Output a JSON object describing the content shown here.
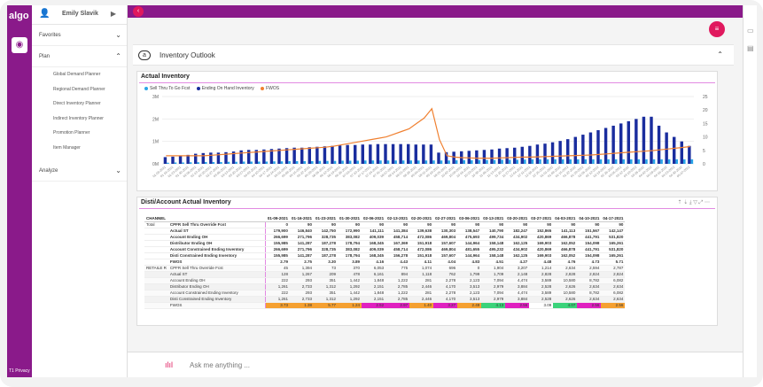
{
  "leftbar": {
    "logo": "algo",
    "privacy": "T1  Privacy"
  },
  "sidebar": {
    "user": "Emily Slavik",
    "sections": {
      "favorites": "Favorites",
      "plan": "Plan",
      "analyze": "Analyze"
    },
    "plan_items": [
      "Global Demand Planner",
      "Regional Demand Planner",
      "Direct Inventory Planner",
      "Indirect Inventory Planner",
      "Promotion Planner",
      "Item Manager"
    ]
  },
  "header": {
    "title": "Inventory Outlook"
  },
  "chart_panel": {
    "title": "Actual Inventory",
    "legend": [
      "Sell Thru To Go Fcst",
      "Ending On Hand Inventory",
      "FWOS"
    ],
    "colors": {
      "sell_thru": "#2aa6e8",
      "ending": "#1a2d9e",
      "fwos": "#f08030"
    }
  },
  "chart_data": {
    "type": "bar",
    "ylim": [
      0,
      3
    ],
    "y_ticks_left": [
      "3M",
      "2M",
      "1M",
      "0M"
    ],
    "y_ticks_right": [
      "25",
      "20",
      "15",
      "10",
      "5",
      "0"
    ],
    "series": [
      {
        "name": "Ending On Hand Inventory",
        "values": [
          0.3,
          0.32,
          0.35,
          0.4,
          0.45,
          0.48,
          0.5,
          0.5,
          0.52,
          0.55,
          0.6,
          0.62,
          0.62,
          0.64,
          0.66,
          0.68,
          0.7,
          0.72,
          0.72,
          0.74,
          0.76,
          0.78,
          0.8,
          0.82,
          0.84,
          0.84,
          0.86,
          0.86,
          0.88,
          0.88,
          0.88,
          0.88,
          0.88,
          0.86,
          0.86,
          0.86,
          0.5,
          0.52,
          0.54,
          0.56,
          0.58,
          0.6,
          0.62,
          0.64,
          0.68,
          0.7,
          0.72,
          0.76,
          0.8,
          0.86,
          0.9,
          0.96,
          1.02,
          1.1,
          1.2,
          1.3,
          1.4,
          1.5,
          1.6,
          1.7,
          1.8,
          1.9,
          2.0,
          2.1,
          2.1,
          1.7,
          1.4,
          1.2,
          1.0,
          0.8
        ]
      },
      {
        "name": "Sell Thru To Go Fcst",
        "values": [
          0.05,
          0.06,
          0.06,
          0.07,
          0.07,
          0.08,
          0.08,
          0.08,
          0.09,
          0.09,
          0.1,
          0.1,
          0.1,
          0.1,
          0.11,
          0.11,
          0.12,
          0.12,
          0.12,
          0.12,
          0.13,
          0.13,
          0.13,
          0.14,
          0.14,
          0.14,
          0.15,
          0.15,
          0.15,
          0.15,
          0.15,
          0.15,
          0.15,
          0.15,
          0.15,
          0.15,
          0.15,
          0.15,
          0.16,
          0.16,
          0.16,
          0.17,
          0.17,
          0.17,
          0.18,
          0.18,
          0.18,
          0.19,
          0.2,
          0.2,
          0.2,
          0.2,
          0.2,
          0.2,
          0.2,
          0.2,
          0.2,
          0.2,
          0.2,
          0.2,
          0.2,
          0.2,
          0.2,
          0.2,
          0.2,
          0.2,
          0.2,
          0.2,
          0.2,
          0.2
        ]
      },
      {
        "name": "FWOS",
        "values": [
          3,
          3,
          3,
          3,
          3,
          3,
          3.2,
          3.4,
          3.6,
          3.8,
          4,
          4.2,
          4.4,
          4.6,
          4.8,
          5,
          5.2,
          5.4,
          5.6,
          5.8,
          6,
          6.2,
          6.5,
          7,
          7.5,
          8,
          8.5,
          9,
          9.5,
          10,
          11,
          12,
          13,
          15,
          17,
          20.5,
          9,
          3,
          2.5,
          2.3,
          2.2,
          2.1,
          2.1,
          2.1,
          2.2,
          2.3,
          2.4,
          2.5,
          2.5,
          2.6,
          2.7,
          2.8,
          2.9,
          3,
          3.1,
          3.2,
          3.3,
          3.5,
          3.7,
          3.9,
          4.1,
          4.3,
          4.5,
          4.7,
          4.9,
          5.2,
          5.5,
          5.8,
          6.1,
          6.4
        ]
      }
    ]
  },
  "table_panel": {
    "title": "Disti/Account Actual Inventory",
    "header": [
      "CHANNEL",
      "",
      "01-09-2021",
      "01-16-2021",
      "01-23-2021",
      "01-30-2021",
      "02-06-2021",
      "02-13-2021",
      "02-20-2021",
      "02-27-2021",
      "03-06-2021",
      "03-13-2021",
      "03-20-2021",
      "03-27-2021",
      "04-03-2021",
      "04-10-2021",
      "04-17-2021"
    ],
    "rows": [
      [
        "Total",
        "CPFR Sell Thru Override Fcst",
        "0",
        "90",
        "90",
        "90",
        "90",
        "90",
        "90",
        "90",
        "90",
        "90",
        "90",
        "90",
        "90",
        "90",
        "90"
      ],
      [
        "",
        "Actual ST",
        "179,900",
        "146,840",
        "142,750",
        "172,990",
        "141,111",
        "141,384",
        "139,638",
        "130,303",
        "138,547",
        "140,790",
        "182,247",
        "152,865",
        "141,113",
        "151,567",
        "142,147"
      ],
      [
        "",
        "Account Ending OH",
        "266,699",
        "271,796",
        "328,735",
        "383,082",
        "409,039",
        "458,714",
        "472,086",
        "469,804",
        "475,693",
        "499,734",
        "434,902",
        "420,869",
        "466,878",
        "441,791",
        "531,820"
      ],
      [
        "",
        "Distributor Ending OH",
        "155,985",
        "141,287",
        "187,278",
        "178,794",
        "168,345",
        "167,369",
        "151,918",
        "157,607",
        "144,964",
        "158,148",
        "162,125",
        "169,903",
        "162,052",
        "154,098",
        "165,261"
      ],
      [
        "",
        "Account Constrained Ending Inventory",
        "266,699",
        "271,796",
        "328,735",
        "383,082",
        "409,039",
        "458,714",
        "472,086",
        "469,804",
        "481,655",
        "495,232",
        "434,902",
        "420,869",
        "466,878",
        "441,791",
        "531,820"
      ],
      [
        "",
        "Disti Constrained Ending Inventory",
        "155,985",
        "141,287",
        "187,278",
        "178,794",
        "168,345",
        "156,278",
        "151,918",
        "157,607",
        "144,964",
        "158,148",
        "162,125",
        "169,903",
        "162,052",
        "154,098",
        "165,261"
      ],
      [
        "",
        "FWOS",
        "2.79",
        "2.75",
        "3.30",
        "3.89",
        "4.16",
        "4.43",
        "4.11",
        "4.04",
        "4.83",
        "4.51",
        "4.27",
        "4.48",
        "4.76",
        "4.73",
        "5.71"
      ],
      [
        "RETAILE R",
        "CPFR Sell Thru Override Fcst",
        "45",
        "1,394",
        "73",
        "370",
        "6,053",
        "775",
        "1,074",
        "696",
        "0",
        "1,904",
        "3,207",
        "1,214",
        "2,634",
        "2,594",
        "2,787"
      ],
      [
        "",
        "Actual ST",
        "128",
        "1,267",
        "209",
        "478",
        "6,161",
        "894",
        "1,118",
        "762",
        "1,799",
        "1,709",
        "2,148",
        "2,828",
        "2,828",
        "2,824",
        "2,824"
      ],
      [
        "",
        "Account Ending OH",
        "222",
        "293",
        "351",
        "1,442",
        "1,848",
        "1,222",
        "281",
        "2,278",
        "2,123",
        "7,094",
        "4,474",
        "3,589",
        "10,580",
        "8,782",
        "6,082"
      ],
      [
        "",
        "Distributor Ending OH",
        "1,261",
        "2,733",
        "1,312",
        "1,292",
        "2,151",
        "2,785",
        "2,446",
        "4,170",
        "3,513",
        "2,979",
        "3,884",
        "2,528",
        "2,626",
        "2,634",
        "2,634"
      ],
      [
        "",
        "Account Constrained Ending Inventory",
        "222",
        "293",
        "351",
        "1,442",
        "1,848",
        "1,222",
        "281",
        "2,278",
        "2,123",
        "7,094",
        "4,474",
        "3,589",
        "10,580",
        "8,782",
        "6,082"
      ],
      [
        "",
        "Disti Constrained Ending Inventory",
        "1,261",
        "2,733",
        "1,312",
        "1,292",
        "2,151",
        "2,785",
        "2,446",
        "4,170",
        "3,513",
        "2,979",
        "3,884",
        "2,528",
        "2,626",
        "2,634",
        "2,634"
      ],
      [
        "",
        "FWOS",
        "3.73",
        "1.38",
        "5.77",
        "1.24",
        "2.52",
        "2.97",
        "1.40",
        "3.27",
        "2.49",
        "4.13",
        "2.56",
        "3.09",
        "4.07",
        "2.56",
        "2.56"
      ]
    ],
    "fwos_colors": [
      "#f5a030",
      "#f5a030",
      "#f5a030",
      "#f5a030",
      "#e020c0",
      "#e020c0",
      "#f5a030",
      "#e020c0",
      "#f5a030",
      "#3ad37a",
      "#e020c0",
      "#ffffff",
      "#3ad37a",
      "#e020c0",
      "#f5a030"
    ]
  },
  "ask": {
    "placeholder": "Ask me anything ..."
  }
}
